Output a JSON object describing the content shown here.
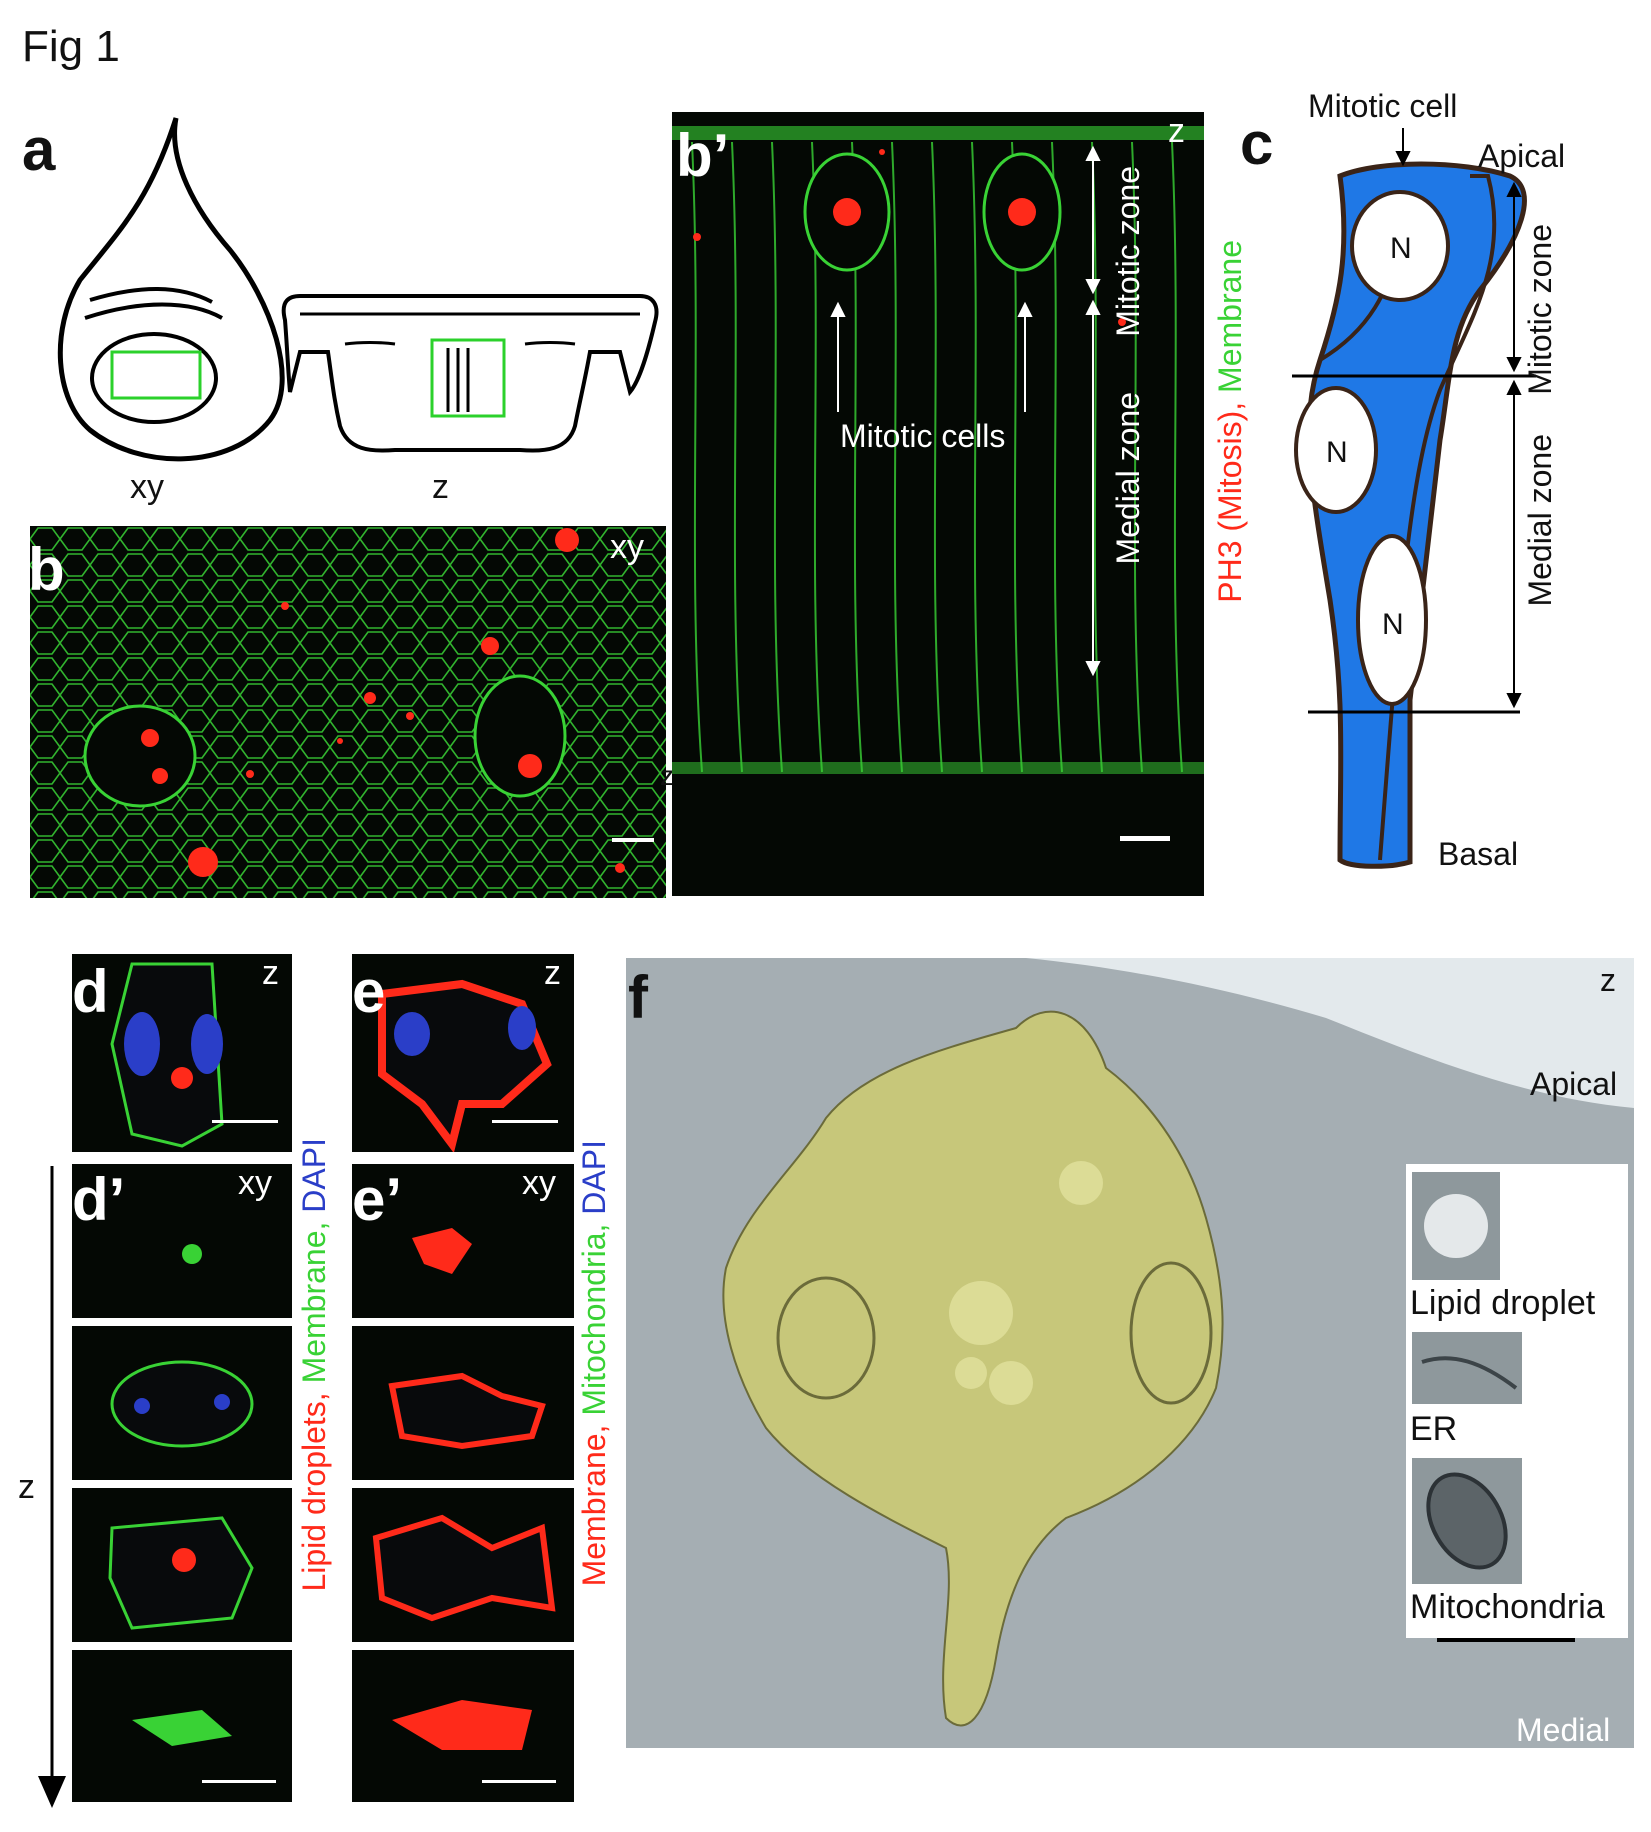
{
  "figure_title": "Fig 1",
  "panels": {
    "a": {
      "label": "a",
      "xy_label": "xy",
      "z_label": "z"
    },
    "b": {
      "label": "b",
      "orientation": "xy",
      "stray": "z"
    },
    "b_prime": {
      "label": "b’",
      "orientation": "z",
      "mitotic_zone": "Mitotic zone",
      "medial_zone": "Medial zone",
      "mitotic_cells": "Mitotic cells",
      "stain_red": "PH3 (Mitosis),",
      "stain_green": "Membrane"
    },
    "c": {
      "label": "c",
      "mitotic_cell": "Mitotic cell",
      "apical": "Apical",
      "basal": "Basal",
      "mitotic_zone": "Mitotic zone",
      "medial_zone": "Medial zone",
      "nucleus": "N"
    },
    "d": {
      "label": "d",
      "orientation": "z"
    },
    "d_prime": {
      "label": "d’",
      "orientation": "xy",
      "axis": "z",
      "stain_red": "Lipid droplets,",
      "stain_green": "Membrane,",
      "stain_blue": "DAPI"
    },
    "e": {
      "label": "e",
      "orientation": "z"
    },
    "e_prime": {
      "label": "e’",
      "orientation": "xy",
      "stain_red": "Membrane,",
      "stain_green": "Mitochondria,",
      "stain_blue": "DAPI"
    },
    "f": {
      "label": "f",
      "orientation": "z",
      "apical": "Apical",
      "medial": "Medial",
      "inset_lipid": "Lipid droplet",
      "inset_er": "ER",
      "inset_mito": "Mitochondria"
    }
  },
  "colors": {
    "membrane_green": "#39d235",
    "ph3_red": "#ff2a1a",
    "cell_blue": "#1f78e6",
    "em_gray": "#a5aeb3",
    "cell_yellow": "#c7c77a",
    "box_green": "#2bd12b"
  }
}
